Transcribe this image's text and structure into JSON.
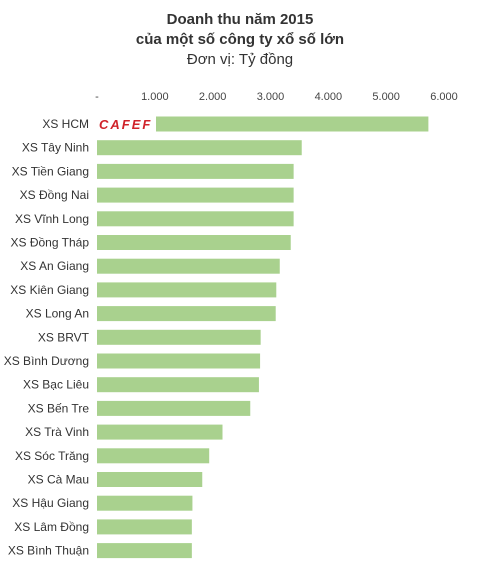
{
  "chart_data": {
    "type": "bar",
    "orientation": "horizontal",
    "title": "Doanh thu năm 2015",
    "subtitle": "của một số công ty xổ số lớn",
    "unit_label": "Đơn vị: Tỷ đồng",
    "xlabel": "",
    "ylabel": "",
    "xlim": [
      0,
      6000
    ],
    "x_ticks": [
      0,
      1000,
      2000,
      3000,
      4000,
      5000,
      6000
    ],
    "x_tick_labels": [
      "-",
      "1.000",
      "2.000",
      "3.000",
      "4.000",
      "5.000",
      "6.000"
    ],
    "axis_position": "top",
    "grid": false,
    "legend": "none",
    "bar_color": "#a9d18e",
    "categories": [
      "XS HCM",
      "XS Tây Ninh",
      "XS Tiền Giang",
      "XS Đồng Nai",
      "XS Vĩnh Long",
      "XS Đồng Tháp",
      "XS An Giang",
      "XS Kiên Giang",
      "XS Long An",
      "XS BRVT",
      "XS Bình Dương",
      "XS Bạc Liêu",
      "XS Bến Tre",
      "XS Trà Vinh",
      "XS Sóc Trăng",
      "XS Cà Mau",
      "XS Hậu Giang",
      "XS Lâm Đồng",
      "XS Bình Thuận"
    ],
    "values": [
      5730,
      3540,
      3400,
      3400,
      3400,
      3350,
      3160,
      3100,
      3090,
      2830,
      2820,
      2800,
      2650,
      2170,
      1940,
      1820,
      1650,
      1640,
      1640
    ]
  },
  "watermark": {
    "text": "CAFEF",
    "color": "#d0232a"
  }
}
